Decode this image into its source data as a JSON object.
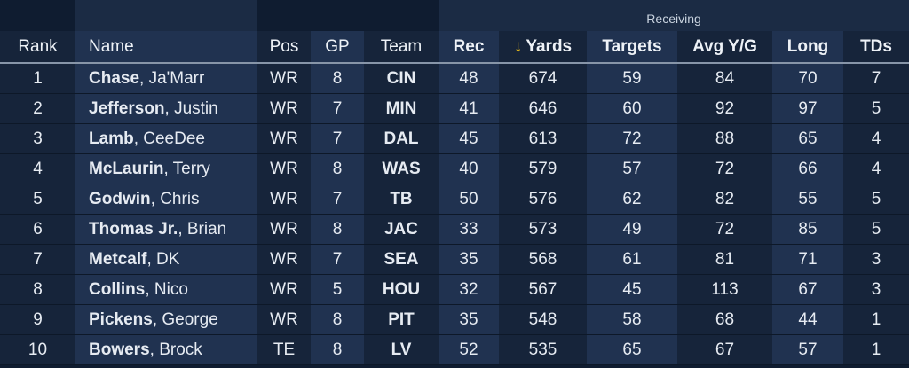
{
  "group_header": {
    "receiving": "Receiving"
  },
  "columns": {
    "rank": "Rank",
    "name": "Name",
    "pos": "Pos",
    "gp": "GP",
    "team": "Team",
    "rec": "Rec",
    "yards": "Yards",
    "targets": "Targets",
    "avg": "Avg Y/G",
    "long": "Long",
    "tds": "TDs"
  },
  "sort": {
    "column": "yards",
    "direction": "descending",
    "icon": "arrow-down-icon"
  },
  "colors": {
    "accent": "#f5c518",
    "background": "#0f1c30"
  },
  "rows": [
    {
      "rank": "1",
      "last": "Chase",
      "first": ", Ja'Marr",
      "pos": "WR",
      "gp": "8",
      "team": "CIN",
      "rec": "48",
      "yards": "674",
      "targets": "59",
      "avg": "84",
      "long": "70",
      "tds": "7"
    },
    {
      "rank": "2",
      "last": "Jefferson",
      "first": ", Justin",
      "pos": "WR",
      "gp": "7",
      "team": "MIN",
      "rec": "41",
      "yards": "646",
      "targets": "60",
      "avg": "92",
      "long": "97",
      "tds": "5"
    },
    {
      "rank": "3",
      "last": "Lamb",
      "first": ", CeeDee",
      "pos": "WR",
      "gp": "7",
      "team": "DAL",
      "rec": "45",
      "yards": "613",
      "targets": "72",
      "avg": "88",
      "long": "65",
      "tds": "4"
    },
    {
      "rank": "4",
      "last": "McLaurin",
      "first": ", Terry",
      "pos": "WR",
      "gp": "8",
      "team": "WAS",
      "rec": "40",
      "yards": "579",
      "targets": "57",
      "avg": "72",
      "long": "66",
      "tds": "4"
    },
    {
      "rank": "5",
      "last": "Godwin",
      "first": ", Chris",
      "pos": "WR",
      "gp": "7",
      "team": "TB",
      "rec": "50",
      "yards": "576",
      "targets": "62",
      "avg": "82",
      "long": "55",
      "tds": "5"
    },
    {
      "rank": "6",
      "last": "Thomas Jr.",
      "first": ", Brian",
      "pos": "WR",
      "gp": "8",
      "team": "JAC",
      "rec": "33",
      "yards": "573",
      "targets": "49",
      "avg": "72",
      "long": "85",
      "tds": "5"
    },
    {
      "rank": "7",
      "last": "Metcalf",
      "first": ", DK",
      "pos": "WR",
      "gp": "7",
      "team": "SEA",
      "rec": "35",
      "yards": "568",
      "targets": "61",
      "avg": "81",
      "long": "71",
      "tds": "3"
    },
    {
      "rank": "8",
      "last": "Collins",
      "first": ", Nico",
      "pos": "WR",
      "gp": "5",
      "team": "HOU",
      "rec": "32",
      "yards": "567",
      "targets": "45",
      "avg": "113",
      "long": "67",
      "tds": "3"
    },
    {
      "rank": "9",
      "last": "Pickens",
      "first": ", George",
      "pos": "WR",
      "gp": "8",
      "team": "PIT",
      "rec": "35",
      "yards": "548",
      "targets": "58",
      "avg": "68",
      "long": "44",
      "tds": "1"
    },
    {
      "rank": "10",
      "last": "Bowers",
      "first": ", Brock",
      "pos": "TE",
      "gp": "8",
      "team": "LV",
      "rec": "52",
      "yards": "535",
      "targets": "65",
      "avg": "67",
      "long": "57",
      "tds": "1"
    }
  ]
}
